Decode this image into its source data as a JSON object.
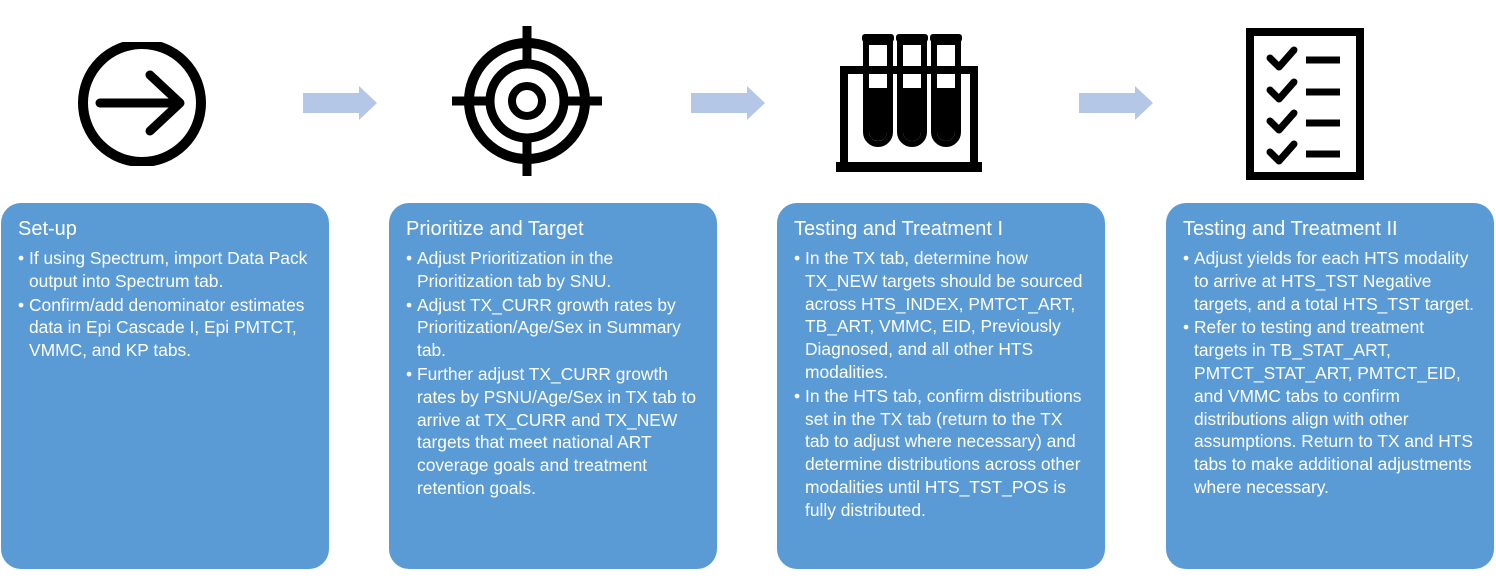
{
  "steps": [
    {
      "icon": "arrow-right-circle-icon",
      "title": "Set-up",
      "bullets": [
        "If using Spectrum, import Data Pack output into Spectrum tab.",
        "Confirm/add denominator estimates data in Epi Cascade I, Epi PMTCT, VMMC, and KP tabs."
      ]
    },
    {
      "icon": "target-icon",
      "title": "Prioritize and Target",
      "bullets": [
        "Adjust Prioritization in the Prioritization tab by SNU.",
        "Adjust TX_CURR growth rates by Prioritization/Age/Sex in Summary tab.",
        "Further adjust TX_CURR growth rates by PSNU/Age/Sex in TX tab to arrive at TX_CURR and TX_NEW targets that meet national ART coverage goals and treatment retention goals."
      ]
    },
    {
      "icon": "test-tubes-icon",
      "title": "Testing and Treatment I",
      "bullets": [
        "In the TX tab, determine how TX_NEW targets should be sourced across HTS_INDEX, PMTCT_ART, TB_ART, VMMC, EID, Previously Diagnosed, and all other HTS modalities.",
        "In the HTS tab, confirm distributions set in the TX tab (return to the TX tab to adjust where necessary) and determine distributions across other modalities until HTS_TST_POS is fully distributed."
      ]
    },
    {
      "icon": "checklist-icon",
      "title": "Testing and Treatment II",
      "bullets": [
        "Adjust yields for each HTS modality to arrive at HTS_TST Negative targets, and a total HTS_TST target.",
        "Refer to testing and treatment targets in TB_STAT_ART, PMTCT_STAT_ART, PMTCT_EID, and VMMC tabs to confirm distributions align with other assumptions. Return to TX and HTS tabs to make additional adjustments where necessary."
      ]
    }
  ],
  "colors": {
    "card": "#5b9bd5",
    "flow_arrow": "#b4c7e7",
    "icon": "#000000"
  }
}
